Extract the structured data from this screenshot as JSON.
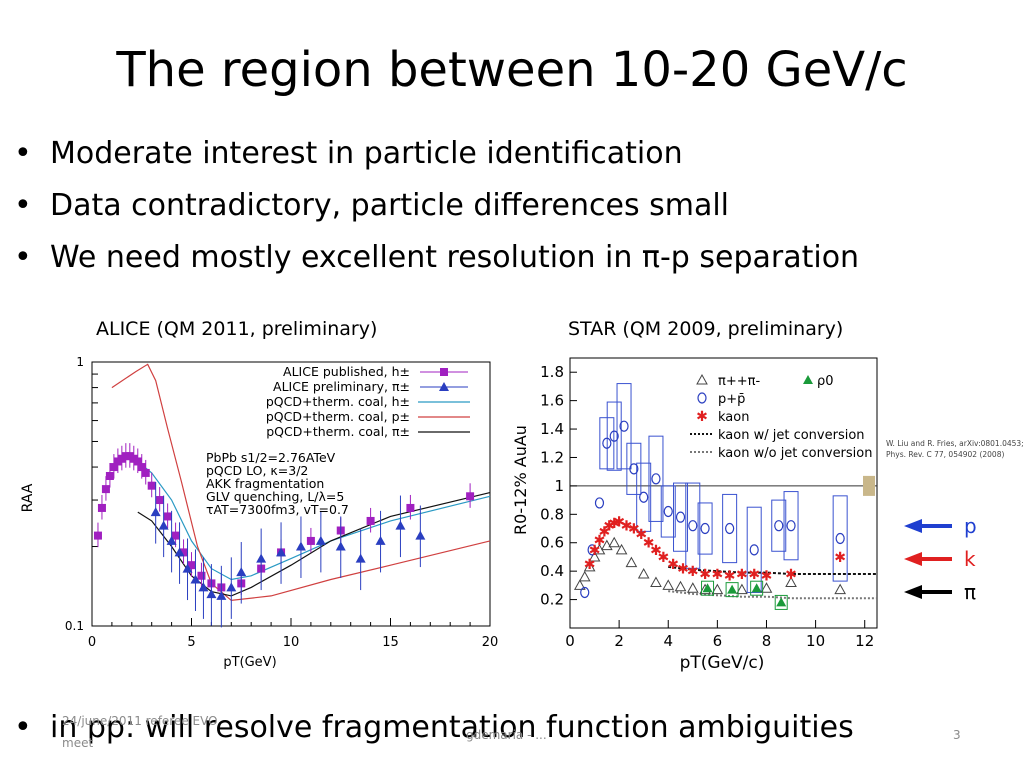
{
  "slide": {
    "title": "The region between 10-20 GeV/c",
    "bullets": [
      "Moderate interest in particle identification",
      "Data contradictory, particle differences small",
      "We need mostly excellent resolution in π-p separation"
    ],
    "bottom_bullet": "in  pp: will resolve fragmentation function ambiguities",
    "footer": {
      "date": "24/june/2011 referee EVO",
      "meet": "meet",
      "center": "gdemaria - ...",
      "page": "3"
    }
  },
  "captions": {
    "left": "ALICE (QM 2011, preliminary)",
    "right": "STAR (QM 2009, preliminary)"
  },
  "chart_data": [
    {
      "type": "scatter",
      "title": "",
      "xlabel": "pT(GeV)",
      "ylabel": "RAA",
      "xlim": [
        0,
        20
      ],
      "ylim": [
        0.1,
        1
      ],
      "log_y": true,
      "x_ticks": [
        "0",
        "5",
        "10",
        "15",
        "20"
      ],
      "y_ticks": [
        "0.1",
        "1"
      ],
      "legend": [
        "ALICE published, h±",
        "ALICE preliminary, π±",
        "pQCD+therm. coal, h±",
        "pQCD+therm. coal, p±",
        "pQCD+therm. coal, π±"
      ],
      "annotation": [
        "PbPb   s1/2=2.76ATeV",
        "pQCD LO, κ=3/2",
        "AKK fragmentation",
        "GLV quenching, L/λ=5",
        "τAT=7300fm3, vT=0.7"
      ],
      "series": [
        {
          "name": "ALICE published, h±",
          "color": "#a020c0",
          "x": [
            0.3,
            0.5,
            0.7,
            0.9,
            1.1,
            1.3,
            1.5,
            1.7,
            1.9,
            2.1,
            2.3,
            2.5,
            2.7,
            3.0,
            3.4,
            3.8,
            4.2,
            4.6,
            5.0,
            5.5,
            6.0,
            6.5,
            7.5,
            8.5,
            9.5,
            11,
            12.5,
            14,
            16,
            19
          ],
          "y": [
            0.22,
            0.28,
            0.33,
            0.37,
            0.4,
            0.42,
            0.43,
            0.44,
            0.44,
            0.43,
            0.42,
            0.4,
            0.38,
            0.34,
            0.3,
            0.26,
            0.22,
            0.19,
            0.17,
            0.155,
            0.145,
            0.14,
            0.145,
            0.165,
            0.19,
            0.21,
            0.23,
            0.25,
            0.28,
            0.31
          ]
        },
        {
          "name": "ALICE preliminary, π±",
          "color": "#2a3ec0",
          "x": [
            3.2,
            3.6,
            4.0,
            4.4,
            4.8,
            5.2,
            5.6,
            6.0,
            6.5,
            7.0,
            7.5,
            8.5,
            9.5,
            10.5,
            11.5,
            12.5,
            13.5,
            14.5,
            15.5,
            16.5
          ],
          "y": [
            0.27,
            0.24,
            0.21,
            0.19,
            0.165,
            0.15,
            0.14,
            0.132,
            0.13,
            0.14,
            0.16,
            0.18,
            0.19,
            0.2,
            0.21,
            0.2,
            0.18,
            0.21,
            0.24,
            0.22
          ]
        }
      ],
      "curves": [
        {
          "name": "pQCD+therm. coal, h±",
          "color": "#2a9ac4",
          "x": [
            2.3,
            3,
            4,
            5,
            6,
            7,
            8,
            10,
            12,
            15,
            20
          ],
          "y": [
            0.42,
            0.38,
            0.3,
            0.21,
            0.165,
            0.15,
            0.155,
            0.18,
            0.21,
            0.25,
            0.31
          ]
        },
        {
          "name": "pQCD+therm. coal, p±",
          "color": "#d04040",
          "x": [
            1.0,
            2.2,
            2.8,
            3.2,
            3.8,
            4.5,
            5.3,
            6.0,
            7,
            9,
            12,
            15,
            20
          ],
          "y": [
            0.8,
            0.92,
            0.98,
            0.85,
            0.56,
            0.35,
            0.2,
            0.145,
            0.125,
            0.13,
            0.15,
            0.17,
            0.21
          ]
        },
        {
          "name": "pQCD+therm. coal, π±",
          "color": "#111111",
          "x": [
            2.3,
            3,
            4,
            5,
            6,
            7,
            8,
            10,
            12,
            15,
            20
          ],
          "y": [
            0.27,
            0.25,
            0.2,
            0.155,
            0.135,
            0.13,
            0.14,
            0.17,
            0.21,
            0.26,
            0.32
          ]
        }
      ]
    },
    {
      "type": "scatter",
      "title": "",
      "xlabel": "pT(GeV/c)",
      "ylabel": "R0-12% AuAu",
      "xlim": [
        0,
        12.5
      ],
      "ylim": [
        0,
        1.9
      ],
      "x_ticks": [
        "0",
        "2",
        "4",
        "6",
        "8",
        "10",
        "12"
      ],
      "y_ticks": [
        "0.2",
        "0.4",
        "0.6",
        "0.8",
        "1",
        "1.2",
        "1.4",
        "1.6",
        "1.8"
      ],
      "legend": [
        "π++π-",
        "p+p̄",
        "kaon",
        "kaon w/ jet conversion",
        "kaon w/o jet conversion",
        "ρ0"
      ],
      "reference_note": [
        "W. Liu and R. Fries, arXiv:0801.0453;",
        "Phys. Rev. C 77, 054902 (2008)"
      ],
      "side_labels": [
        {
          "text": "p",
          "color": "#1f3fd0"
        },
        {
          "text": "k",
          "color": "#e02020"
        },
        {
          "text": "π",
          "color": "#000000"
        }
      ],
      "series": [
        {
          "name": "π++π-",
          "color": "#444444",
          "x": [
            0.4,
            0.6,
            0.8,
            1.0,
            1.2,
            1.5,
            1.8,
            2.1,
            2.5,
            3.0,
            3.5,
            4.0,
            4.5,
            5.0,
            5.5,
            6.0,
            7.0,
            8.0,
            9.0,
            11.0
          ],
          "y": [
            0.3,
            0.36,
            0.43,
            0.5,
            0.55,
            0.58,
            0.6,
            0.55,
            0.46,
            0.38,
            0.32,
            0.3,
            0.29,
            0.28,
            0.27,
            0.27,
            0.27,
            0.28,
            0.32,
            0.27
          ]
        },
        {
          "name": "p+p̄",
          "color": "#2a3ec0",
          "x": [
            0.6,
            0.9,
            1.2,
            1.5,
            1.8,
            2.2,
            2.6,
            3.0,
            3.5,
            4.0,
            4.5,
            5.0,
            5.5,
            6.5,
            7.5,
            8.5,
            9.0,
            11.0
          ],
          "y": [
            0.25,
            0.55,
            0.88,
            1.3,
            1.35,
            1.42,
            1.12,
            0.92,
            1.05,
            0.82,
            0.78,
            0.72,
            0.7,
            0.7,
            0.55,
            0.72,
            0.72,
            0.63
          ]
        },
        {
          "name": "kaon",
          "color": "#e02020",
          "x": [
            0.8,
            1.0,
            1.2,
            1.4,
            1.6,
            1.8,
            2.0,
            2.3,
            2.6,
            2.9,
            3.2,
            3.5,
            3.8,
            4.2,
            4.6,
            5.0,
            5.5,
            6.0,
            6.5,
            7.0,
            7.5,
            8.0,
            9.0,
            11.0
          ],
          "y": [
            0.45,
            0.55,
            0.62,
            0.68,
            0.72,
            0.74,
            0.75,
            0.72,
            0.7,
            0.66,
            0.6,
            0.55,
            0.5,
            0.45,
            0.42,
            0.4,
            0.38,
            0.38,
            0.37,
            0.38,
            0.38,
            0.37,
            0.38,
            0.5
          ]
        },
        {
          "name": "ρ0",
          "color": "#1a9a3a",
          "x": [
            5.6,
            6.6,
            7.6,
            8.6
          ],
          "y": [
            0.28,
            0.27,
            0.28,
            0.18
          ]
        }
      ],
      "curves": [
        {
          "name": "kaon w/ jet conversion",
          "color": "#111111",
          "x": [
            4,
            5,
            6,
            7,
            8,
            9,
            10,
            11,
            12.5
          ],
          "y": [
            0.43,
            0.41,
            0.4,
            0.39,
            0.39,
            0.38,
            0.38,
            0.38,
            0.38
          ]
        },
        {
          "name": "kaon w/o jet conversion",
          "color": "#777777",
          "x": [
            4,
            5,
            6,
            7,
            8,
            9,
            10,
            11,
            12.5
          ],
          "y": [
            0.26,
            0.24,
            0.23,
            0.22,
            0.22,
            0.21,
            0.21,
            0.21,
            0.21
          ]
        }
      ],
      "reference_line": 1.0
    }
  ]
}
